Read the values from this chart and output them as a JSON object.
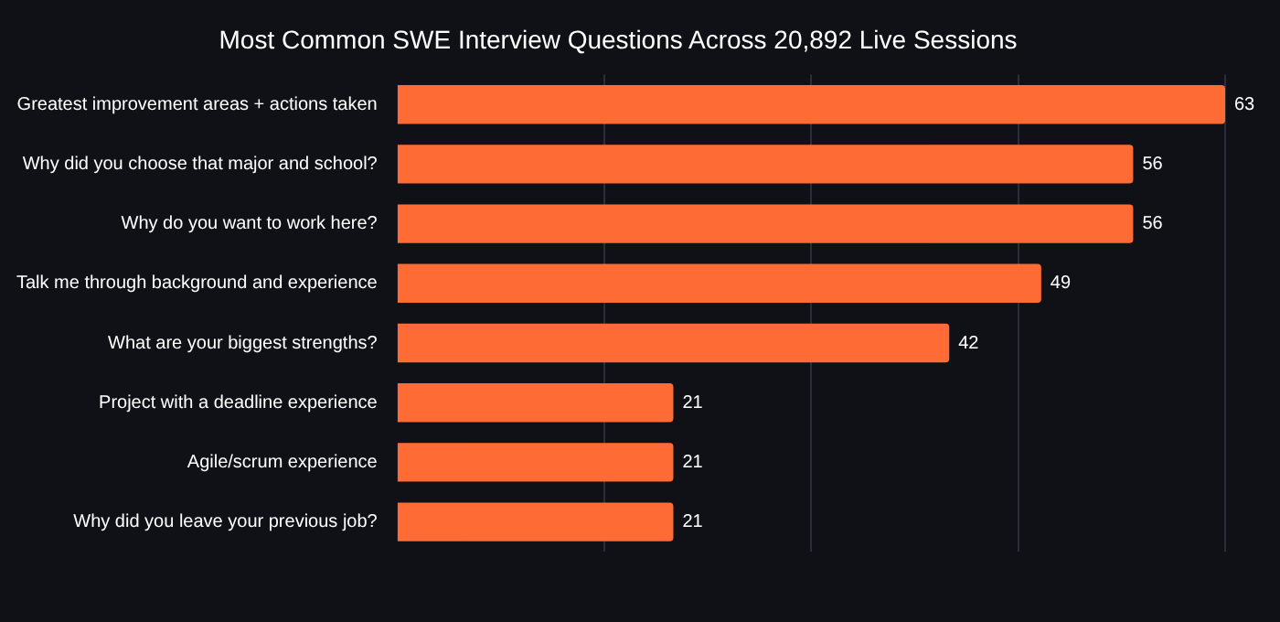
{
  "chart_data": {
    "type": "bar",
    "orientation": "horizontal",
    "title": "Most Common SWE Interview Questions Across 20,892 Live Sessions",
    "categories": [
      "Greatest improvement areas + actions taken",
      "Why did you choose that major and school?",
      "Why do you want to work here?",
      "Talk me through background and experience",
      "What are your biggest strengths?",
      "Project with a deadline experience",
      "Agile/scrum experience",
      "Why did you leave your previous job?"
    ],
    "values": [
      63,
      56,
      56,
      49,
      42,
      21,
      21,
      21
    ],
    "color": "#ff6b35",
    "xlim": [
      0,
      63
    ],
    "xticks": [
      {
        "value": 15.75,
        "label": null
      },
      {
        "value": 31.5,
        "label": null
      },
      {
        "value": 47.25,
        "label": null
      },
      {
        "value": 63,
        "label": null
      }
    ],
    "grid": "x",
    "legend": false,
    "data_labels": true
  }
}
